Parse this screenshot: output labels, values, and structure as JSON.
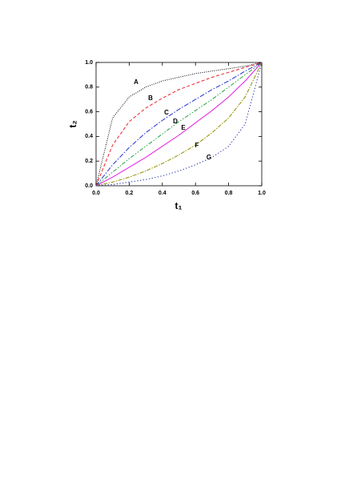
{
  "chart_data": {
    "type": "line",
    "x_label": "t₁",
    "y_label": "t₂",
    "x": [
      0,
      0.1,
      0.2,
      0.3,
      0.4,
      0.5,
      0.6,
      0.7,
      0.8,
      0.9,
      1
    ],
    "series": [
      {
        "name": "A",
        "color": "#000000",
        "values": [
          0,
          0.55,
          0.72,
          0.8,
          0.85,
          0.88,
          0.91,
          0.93,
          0.95,
          0.97,
          1
        ]
      },
      {
        "name": "B",
        "color": "#e8202a",
        "values": [
          0,
          0.33,
          0.52,
          0.63,
          0.71,
          0.78,
          0.83,
          0.88,
          0.92,
          0.96,
          1
        ]
      },
      {
        "name": "C",
        "color": "#2030d0",
        "values": [
          0,
          0.17,
          0.31,
          0.43,
          0.53,
          0.62,
          0.7,
          0.78,
          0.85,
          0.93,
          1
        ]
      },
      {
        "name": "D",
        "color": "#20a040",
        "values": [
          0,
          0.11,
          0.22,
          0.32,
          0.42,
          0.52,
          0.61,
          0.7,
          0.8,
          0.9,
          1
        ]
      },
      {
        "name": "E",
        "color": "#e020e0",
        "values": [
          0,
          0.07,
          0.15,
          0.23,
          0.32,
          0.41,
          0.51,
          0.61,
          0.72,
          0.85,
          1
        ]
      },
      {
        "name": "F",
        "color": "#909000",
        "values": [
          0,
          0.03,
          0.07,
          0.12,
          0.18,
          0.25,
          0.33,
          0.43,
          0.55,
          0.72,
          1
        ]
      },
      {
        "name": "G",
        "color": "#1020a0",
        "values": [
          0,
          0.01,
          0.03,
          0.05,
          0.08,
          0.12,
          0.17,
          0.23,
          0.32,
          0.5,
          1
        ]
      }
    ],
    "xlim": [
      0,
      1
    ],
    "ylim": [
      0,
      1
    ],
    "xticks": [
      {
        "value": 0,
        "label": "0.0"
      },
      0.2,
      0.4,
      0.6,
      0.8,
      {
        "value": 1,
        "label": "1.0"
      }
    ],
    "yticks": [
      {
        "value": 0,
        "label": "0.0"
      },
      0.2,
      0.4,
      0.6,
      0.8,
      {
        "value": 1,
        "label": "1.0"
      }
    ]
  }
}
